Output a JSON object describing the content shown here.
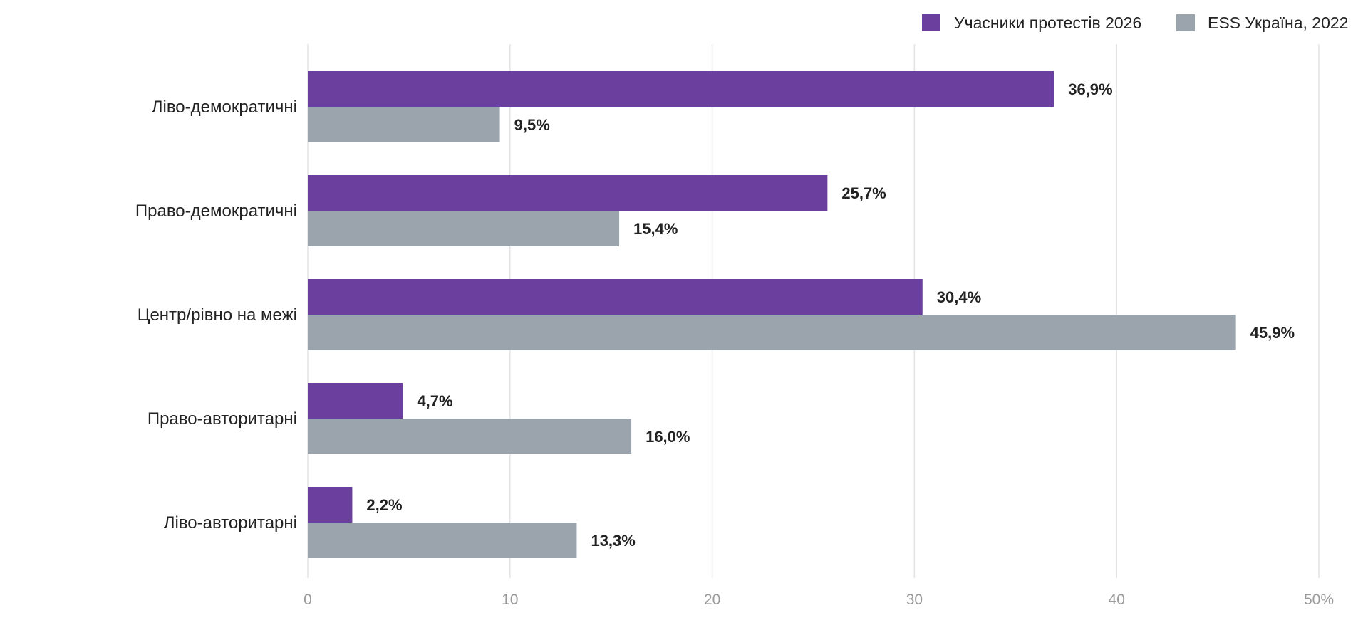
{
  "chart_data": {
    "type": "bar",
    "orientation": "horizontal",
    "title": "",
    "xlabel": "",
    "ylabel": "",
    "categories": [
      "Ліво-демократичні",
      "Право-демократичні",
      "Центр/рівно на межі",
      "Право-авторитарні",
      "Ліво-авторитарні"
    ],
    "series": [
      {
        "name": "Учасники протестів 2026",
        "color": "#6b3f9e",
        "values": [
          36.9,
          25.7,
          30.4,
          4.7,
          2.2
        ],
        "labels": [
          "36,9%",
          "25,7%",
          "30,4%",
          "4,7%",
          "2,2%"
        ]
      },
      {
        "name": "ESS Україна, 2022",
        "color": "#9ba4ad",
        "values": [
          9.5,
          15.4,
          45.9,
          16.0,
          13.3
        ],
        "labels": [
          "9,5%",
          "15,4%",
          "45,9%",
          "16,0%",
          "13,3%"
        ]
      }
    ],
    "xlim": [
      0,
      50
    ],
    "xticks": [
      0,
      10,
      20,
      30,
      40,
      50
    ],
    "xtick_labels": [
      "0",
      "10",
      "20",
      "30",
      "40",
      "50%"
    ],
    "grid": true,
    "legend_position": "top-right"
  }
}
